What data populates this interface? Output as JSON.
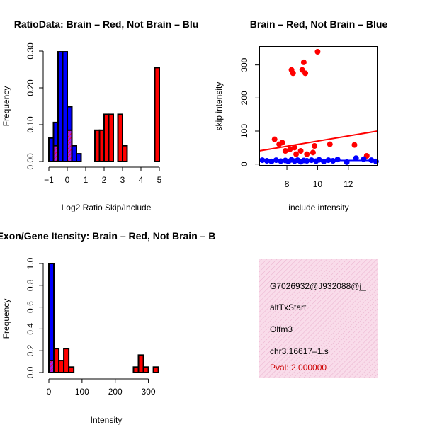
{
  "colors": {
    "brain": "#ff0000",
    "not_brain": "#0000ff",
    "overlap": "#a020f0",
    "info_panel_fill": "#f8d8e8",
    "info_panel_hatch": "#e8a8c8",
    "pval_text": "#cc0000"
  },
  "chart_data": [
    {
      "id": "ratio-histogram",
      "type": "bar",
      "title": "RatioData: Brain – Red, Not Brain – Blu",
      "xlabel": "Log2 Ratio Skip/Include",
      "ylabel": "Frequency",
      "xlim": [
        -1,
        5
      ],
      "ylim": [
        0,
        0.3
      ],
      "xticks": [
        -1,
        0,
        1,
        2,
        3,
        4,
        5
      ],
      "yticks": [
        0.0,
        0.1,
        0.2,
        0.3
      ],
      "ytick_labels": [
        "0.00",
        "0.10",
        "0.20",
        "0.30"
      ],
      "xtick_labels": [
        "−1",
        "0",
        "1",
        "2",
        "3",
        "4",
        "5"
      ],
      "bin_width": 0.25,
      "series": [
        {
          "name": "Not Brain",
          "color": "blue",
          "bins": [
            {
              "start": -1.0,
              "value": 0.064
            },
            {
              "start": -0.75,
              "value": 0.106
            },
            {
              "start": -0.5,
              "value": 0.298
            },
            {
              "start": -0.25,
              "value": 0.298
            },
            {
              "start": 0.0,
              "value": 0.149
            },
            {
              "start": 0.25,
              "value": 0.043
            },
            {
              "start": 0.5,
              "value": 0.021
            }
          ]
        },
        {
          "name": "Brain",
          "color": "red",
          "bins": [
            {
              "start": -0.75,
              "value": 0.043
            },
            {
              "start": 0.0,
              "value": 0.085
            },
            {
              "start": 1.5,
              "value": 0.085
            },
            {
              "start": 1.75,
              "value": 0.085
            },
            {
              "start": 2.0,
              "value": 0.128
            },
            {
              "start": 2.25,
              "value": 0.128
            },
            {
              "start": 2.75,
              "value": 0.128
            },
            {
              "start": 3.0,
              "value": 0.043
            },
            {
              "start": 4.75,
              "value": 0.255
            }
          ]
        }
      ]
    },
    {
      "id": "skip-include-scatter",
      "type": "scatter",
      "title": "Brain – Red, Not Brain – Blue",
      "xlabel": "include intensity",
      "ylabel": "skip intensity",
      "xlim": [
        6.2,
        13.9
      ],
      "ylim": [
        -5,
        355
      ],
      "xticks": [
        8,
        10,
        12
      ],
      "yticks": [
        0,
        100,
        200,
        300
      ],
      "series": [
        {
          "name": "Brain",
          "color": "red",
          "points": [
            [
              8.3,
              285
            ],
            [
              8.4,
              275
            ],
            [
              9.0,
              285
            ],
            [
              9.1,
              308
            ],
            [
              9.2,
              275
            ],
            [
              10.0,
              340
            ],
            [
              7.2,
              75
            ],
            [
              7.5,
              60
            ],
            [
              7.7,
              65
            ],
            [
              7.9,
              40
            ],
            [
              8.2,
              45
            ],
            [
              8.5,
              50
            ],
            [
              8.9,
              40
            ],
            [
              9.3,
              30
            ],
            [
              9.8,
              55
            ],
            [
              10.8,
              60
            ],
            [
              12.4,
              58
            ],
            [
              13.2,
              25
            ],
            [
              8.6,
              30
            ],
            [
              9.7,
              35
            ]
          ],
          "trend": {
            "x": [
              6.2,
              13.9
            ],
            "y": [
              40,
              100
            ]
          }
        },
        {
          "name": "Not Brain",
          "color": "blue",
          "points": [
            [
              6.4,
              12
            ],
            [
              6.7,
              10
            ],
            [
              7.0,
              8
            ],
            [
              7.3,
              12
            ],
            [
              7.6,
              9
            ],
            [
              7.9,
              11
            ],
            [
              8.1,
              8
            ],
            [
              8.3,
              13
            ],
            [
              8.5,
              9
            ],
            [
              8.7,
              12
            ],
            [
              8.9,
              7
            ],
            [
              9.1,
              11
            ],
            [
              9.3,
              10
            ],
            [
              9.6,
              12
            ],
            [
              9.9,
              9
            ],
            [
              10.1,
              13
            ],
            [
              10.4,
              8
            ],
            [
              10.7,
              12
            ],
            [
              11.0,
              10
            ],
            [
              11.3,
              14
            ],
            [
              11.9,
              6
            ],
            [
              12.5,
              18
            ],
            [
              13.0,
              15
            ],
            [
              13.5,
              12
            ],
            [
              13.8,
              8
            ]
          ],
          "trend": {
            "x": [
              6.2,
              13.9
            ],
            "y": [
              11,
              11
            ]
          }
        }
      ]
    },
    {
      "id": "intensity-histogram",
      "type": "bar",
      "title": "Exon/Gene Itensity: Brain – Red, Not Brain – B",
      "xlabel": "Intensity",
      "ylabel": "Frequency",
      "xlim": [
        0,
        350
      ],
      "ylim": [
        0,
        1.0
      ],
      "xticks": [
        0,
        100,
        200,
        300
      ],
      "yticks": [
        0.0,
        0.2,
        0.4,
        0.6,
        0.8,
        1.0
      ],
      "ytick_labels": [
        "0.0",
        "0.2",
        "0.4",
        "0.6",
        "0.8",
        "1.0"
      ],
      "bin_width": 15,
      "series": [
        {
          "name": "Not Brain",
          "color": "blue",
          "bins": [
            {
              "start": 0,
              "value": 1.0
            }
          ]
        },
        {
          "name": "Brain",
          "color": "red",
          "bins": [
            {
              "start": 0,
              "value": 0.11
            },
            {
              "start": 15,
              "value": 0.22
            },
            {
              "start": 30,
              "value": 0.11
            },
            {
              "start": 45,
              "value": 0.22
            },
            {
              "start": 60,
              "value": 0.05
            },
            {
              "start": 255,
              "value": 0.05
            },
            {
              "start": 270,
              "value": 0.16
            },
            {
              "start": 285,
              "value": 0.05
            },
            {
              "start": 315,
              "value": 0.05
            }
          ]
        }
      ]
    }
  ],
  "info_panel": {
    "exon_id": "G7026932@J932088@j_",
    "event_type": "altTxStart",
    "gene": "Olfm3",
    "location": "chr3.16617–1.s",
    "pval": "Pval: 2.000000"
  }
}
